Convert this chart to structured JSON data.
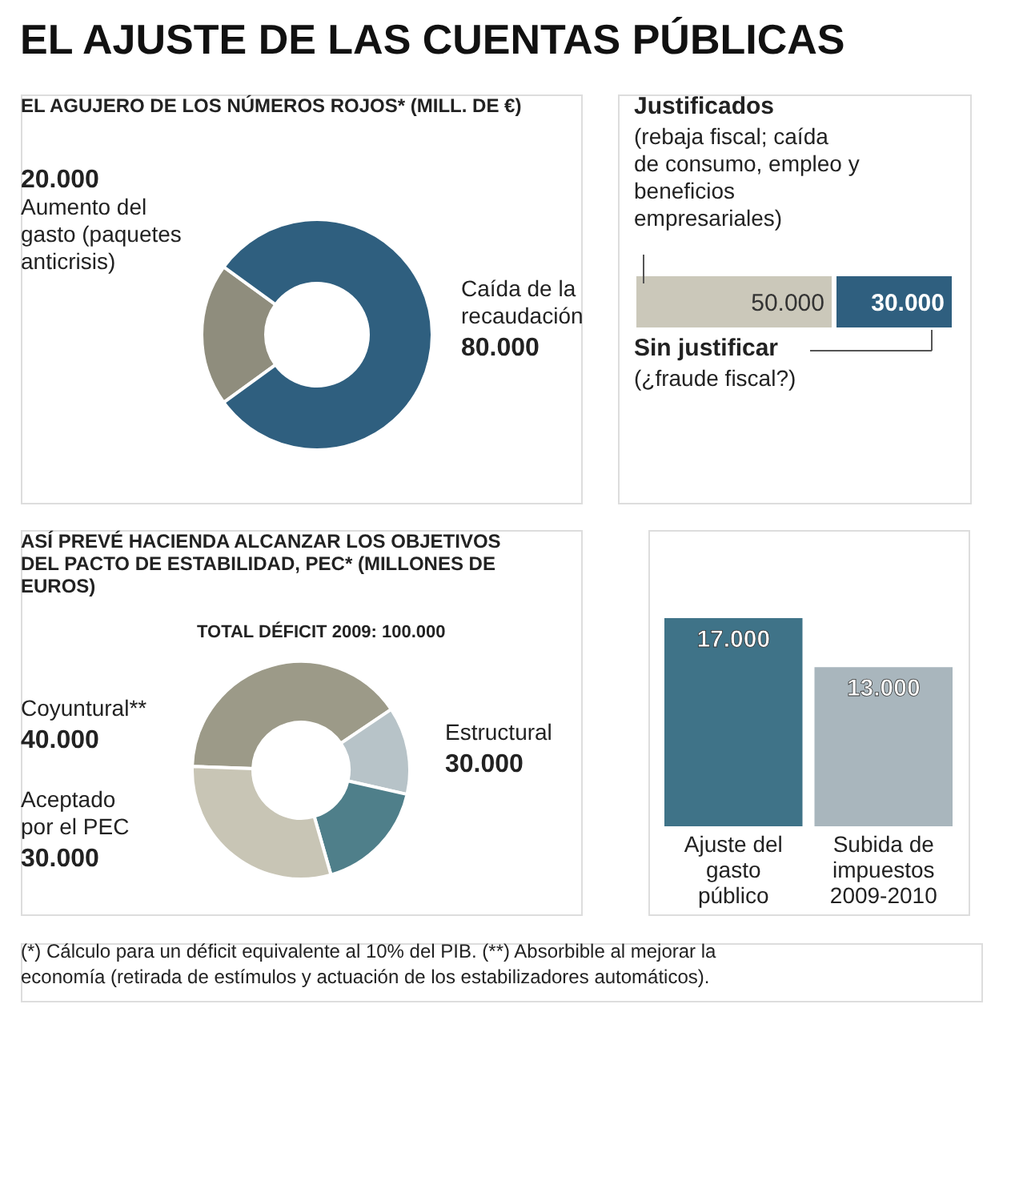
{
  "chart_data": [
    {
      "type": "donut",
      "title": "EL AJUSTE DE LAS CUENTAS PÚBLICAS",
      "subtitle": "EL AGUJERO DE LOS NÚMEROS ROJOS* (MILL. DE €)",
      "categories": [
        "Aumento del gasto (paquetes anticrisis)",
        "Caída de la recaudación"
      ],
      "values": [
        20000,
        80000
      ],
      "value_labels": [
        "20.000",
        "80.000"
      ],
      "colors": [
        "#8f8d7d",
        "#2f5f7f"
      ]
    },
    {
      "type": "bar",
      "orientation": "horizontal",
      "stacked": true,
      "categories": [
        null
      ],
      "series": [
        {
          "color": "#cbc8ba",
          "values": [
            50000
          ],
          "value_labels": [
            "50.000"
          ]
        },
        {
          "color": "#2f5f7f",
          "values": [
            30000
          ],
          "value_labels": [
            "30.000"
          ]
        }
      ],
      "annotations": [
        "Justificados",
        "(rebaja fiscal; caída de consumo, empleo y beneficios empresariales)",
        "Sin justificar",
        "(¿fraude fiscal?)"
      ]
    },
    {
      "type": "donut",
      "title": "ASÍ PREVÉ HACIENDA ALCANZAR LOS OBJETIVOS DEL PACTO DE ESTABILIDAD, PEC* (MILLONES DE EUROS)",
      "subtitle": "TOTAL DÉFICIT 2009: 100.000",
      "categories": [
        "Coyuntural**",
        null,
        null,
        "Aceptado por el PEC"
      ],
      "values": [
        40000,
        13000,
        17000,
        30000
      ],
      "value_labels": [
        "40.000",
        null,
        null,
        "30.000"
      ],
      "colors": [
        "#9c9a88",
        "#b7c3c8",
        "#4f7f8a",
        "#c8c5b5"
      ],
      "annotations": [
        "Estructural 30.000"
      ]
    },
    {
      "type": "bar",
      "categories": [
        "Ajuste del gasto público",
        "Subida de impuestos 2009-2010"
      ],
      "values": [
        17000,
        13000
      ],
      "value_labels": [
        "17.000",
        "13.000"
      ],
      "colors": [
        "#3f7388",
        "#a9b6bd"
      ],
      "annotations": [
        "(*) Cálculo para un déficit equivalente al 10% del PIB. (**) Absorbible al mejorar la economía (retirada de estímulos y actuación de los estabilizadores automáticos)."
      ]
    }
  ]
}
